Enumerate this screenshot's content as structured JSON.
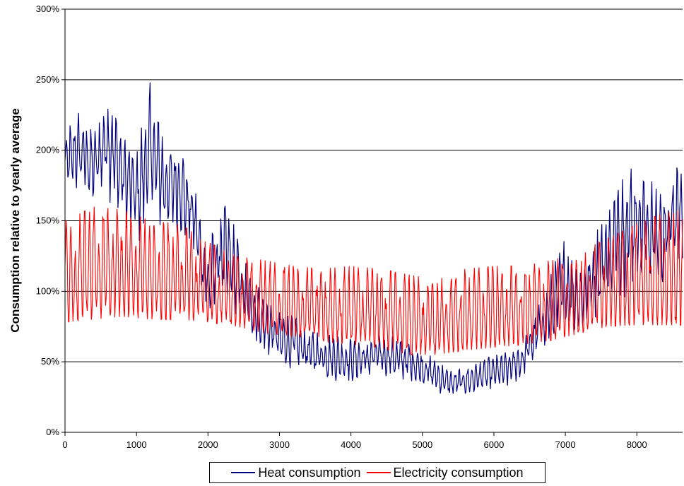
{
  "chart_data": {
    "type": "line",
    "title": "",
    "xlabel": "",
    "ylabel": "Consumption relative to yearly average",
    "xlim": [
      0,
      8640
    ],
    "ylim": [
      0,
      300
    ],
    "x_ticks": [
      "0",
      "1000",
      "2000",
      "3000",
      "4000",
      "5000",
      "6000",
      "7000",
      "8000"
    ],
    "y_ticks": [
      "0%",
      "50%",
      "100%",
      "150%",
      "200%",
      "250%",
      "300%"
    ],
    "grid": "horizontal",
    "legend_position": "bottom",
    "series": [
      {
        "name": "Heat consumption",
        "color": "#000080",
        "description": "hourly heat demand, high in winter, low in summer",
        "envelope": {
          "x": [
            0,
            200,
            400,
            600,
            800,
            1000,
            1200,
            1400,
            1600,
            1800,
            2000,
            2200,
            2400,
            2600,
            2800,
            3000,
            3200,
            3400,
            3600,
            3800,
            4000,
            4200,
            4400,
            4600,
            4800,
            5000,
            5200,
            5400,
            5600,
            5800,
            6000,
            6200,
            6400,
            6600,
            6800,
            7000,
            7200,
            7400,
            7600,
            7800,
            8000,
            8200,
            8400,
            8640
          ],
          "low": [
            165,
            170,
            160,
            165,
            150,
            130,
            150,
            140,
            140,
            125,
            75,
            85,
            80,
            70,
            55,
            45,
            45,
            40,
            38,
            35,
            35,
            36,
            40,
            38,
            35,
            32,
            28,
            24,
            25,
            27,
            30,
            32,
            38,
            50,
            60,
            70,
            68,
            80,
            85,
            95,
            100,
            100,
            100,
            110
          ],
          "high": [
            215,
            230,
            215,
            255,
            215,
            205,
            253,
            210,
            210,
            180,
            130,
            175,
            145,
            110,
            100,
            85,
            85,
            75,
            72,
            70,
            68,
            68,
            70,
            68,
            66,
            60,
            52,
            45,
            48,
            52,
            55,
            58,
            65,
            90,
            115,
            140,
            120,
            140,
            165,
            200,
            200,
            180,
            180,
            213
          ]
        }
      },
      {
        "name": "Electricity consumption",
        "color": "#ff0000",
        "description": "hourly electricity demand with strong daily cycle",
        "envelope": {
          "x": [
            0,
            400,
            800,
            1200,
            1600,
            2000,
            2400,
            2800,
            3200,
            3600,
            4000,
            4400,
            4800,
            5200,
            5600,
            6000,
            6400,
            6800,
            7200,
            7600,
            8000,
            8400,
            8640
          ],
          "low": [
            78,
            80,
            82,
            80,
            80,
            78,
            75,
            70,
            68,
            64,
            62,
            60,
            55,
            55,
            58,
            60,
            62,
            65,
            70,
            75,
            76,
            76,
            76
          ],
          "high": [
            150,
            160,
            158,
            150,
            148,
            135,
            125,
            122,
            118,
            116,
            118,
            116,
            112,
            108,
            116,
            118,
            118,
            122,
            128,
            138,
            148,
            156,
            158
          ]
        }
      }
    ]
  }
}
